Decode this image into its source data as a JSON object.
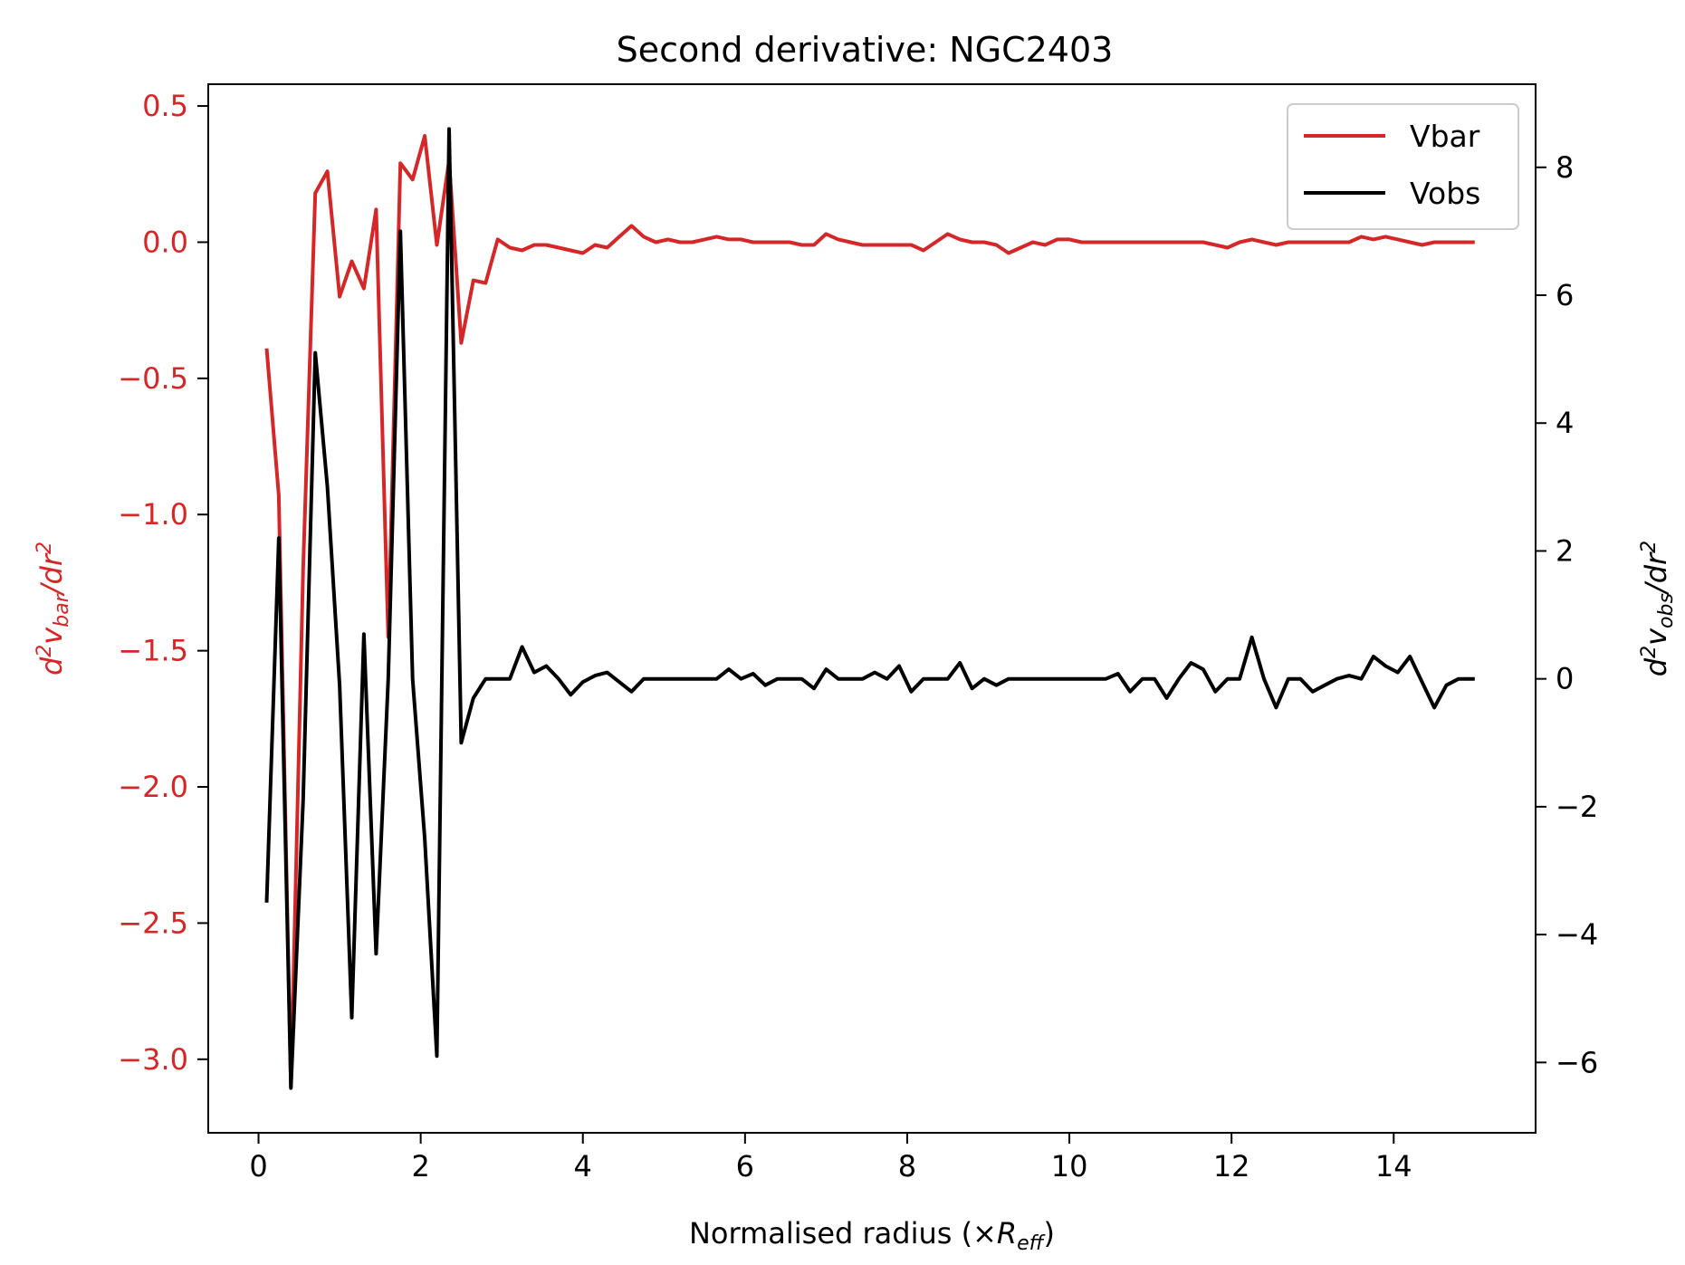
{
  "chart_data": {
    "type": "line",
    "title": "Second derivative: NGC2403",
    "xlabel": "Normalised radius (×R_eff)",
    "ylabel_left": "d²v_bar/dr²",
    "ylabel_right": "d²v_obs/dr²",
    "xlim": [
      -0.62,
      15.75
    ],
    "ylim_left": [
      -3.27,
      0.58
    ],
    "ylim_right": [
      -7.1,
      9.3
    ],
    "x_ticks": [
      0,
      2,
      4,
      6,
      8,
      10,
      12,
      14
    ],
    "y_ticks_left": [
      0.5,
      0.0,
      -0.5,
      -1.0,
      -1.5,
      -2.0,
      -2.5,
      -3.0
    ],
    "y_ticks_right": [
      8,
      6,
      4,
      2,
      0,
      -2,
      -4,
      -6
    ],
    "x_tick_labels": [
      "0",
      "2",
      "4",
      "6",
      "8",
      "10",
      "12",
      "14"
    ],
    "y_tick_labels_left": [
      "0.5",
      "0.0",
      "−0.5",
      "−1.0",
      "−1.5",
      "−2.0",
      "−2.5",
      "−3.0"
    ],
    "y_tick_labels_right": [
      "8",
      "6",
      "4",
      "2",
      "0",
      "−2",
      "−4",
      "−6"
    ],
    "legend_position": "top-right",
    "colors": {
      "vbar": "#d62728",
      "vobs": "#000000",
      "left_axis": "#d62728",
      "right_axis": "#000000"
    },
    "series": [
      {
        "name": "Vbar",
        "axis": "left",
        "color": "#d62728",
        "x": [
          0.1,
          0.25,
          0.4,
          0.55,
          0.7,
          0.85,
          1.0,
          1.15,
          1.3,
          1.45,
          1.6,
          1.75,
          1.9,
          2.05,
          2.2,
          2.35,
          2.5,
          2.65,
          2.8,
          2.95,
          3.1,
          3.25,
          3.4,
          3.55,
          3.7,
          3.85,
          4.0,
          4.15,
          4.3,
          4.45,
          4.6,
          4.75,
          4.9,
          5.05,
          5.2,
          5.35,
          5.5,
          5.65,
          5.8,
          5.95,
          6.1,
          6.25,
          6.4,
          6.55,
          6.7,
          6.85,
          7.0,
          7.15,
          7.3,
          7.45,
          7.6,
          7.75,
          7.9,
          8.05,
          8.2,
          8.35,
          8.5,
          8.65,
          8.8,
          8.95,
          9.1,
          9.25,
          9.4,
          9.55,
          9.7,
          9.85,
          10.0,
          10.15,
          10.3,
          10.45,
          10.6,
          10.75,
          10.9,
          11.05,
          11.2,
          11.35,
          11.5,
          11.65,
          11.8,
          11.95,
          12.1,
          12.25,
          12.4,
          12.55,
          12.7,
          12.85,
          13.0,
          13.15,
          13.3,
          13.45,
          13.6,
          13.75,
          13.9,
          14.05,
          14.2,
          14.35,
          14.5,
          14.65,
          14.8,
          14.95,
          15.0
        ],
        "values": [
          -0.39,
          -0.93,
          -3.1,
          -1.2,
          0.18,
          0.26,
          -0.2,
          -0.07,
          -0.17,
          0.12,
          -1.45,
          0.29,
          0.23,
          0.39,
          -0.01,
          0.3,
          -0.37,
          -0.14,
          -0.15,
          0.01,
          -0.02,
          -0.03,
          -0.01,
          -0.01,
          -0.02,
          -0.03,
          -0.04,
          -0.01,
          -0.02,
          0.02,
          0.06,
          0.02,
          0.0,
          0.01,
          0.0,
          0.0,
          0.01,
          0.02,
          0.01,
          0.01,
          0.0,
          0.0,
          0.0,
          0.0,
          -0.01,
          -0.01,
          0.03,
          0.01,
          0.0,
          -0.01,
          -0.01,
          -0.01,
          -0.01,
          -0.01,
          -0.03,
          0.0,
          0.03,
          0.01,
          0.0,
          0.0,
          -0.01,
          -0.04,
          -0.02,
          0.0,
          -0.01,
          0.01,
          0.01,
          0.0,
          0.0,
          0.0,
          0.0,
          0.0,
          0.0,
          0.0,
          0.0,
          0.0,
          0.0,
          0.0,
          -0.01,
          -0.02,
          0.0,
          0.01,
          0.0,
          -0.01,
          0.0,
          0.0,
          0.0,
          0.0,
          0.0,
          0.0,
          0.02,
          0.01,
          0.02,
          0.01,
          0.0,
          -0.01,
          0.0,
          0.0,
          0.0,
          0.0,
          0.0
        ]
      },
      {
        "name": "Vobs",
        "axis": "right",
        "color": "#000000",
        "x": [
          0.1,
          0.25,
          0.4,
          0.55,
          0.7,
          0.85,
          1.0,
          1.15,
          1.3,
          1.45,
          1.6,
          1.75,
          1.9,
          2.05,
          2.2,
          2.35,
          2.5,
          2.65,
          2.8,
          2.95,
          3.1,
          3.25,
          3.4,
          3.55,
          3.7,
          3.85,
          4.0,
          4.15,
          4.3,
          4.45,
          4.6,
          4.75,
          4.9,
          5.05,
          5.2,
          5.35,
          5.5,
          5.65,
          5.8,
          5.95,
          6.1,
          6.25,
          6.4,
          6.55,
          6.7,
          6.85,
          7.0,
          7.15,
          7.3,
          7.45,
          7.6,
          7.75,
          7.9,
          8.05,
          8.2,
          8.35,
          8.5,
          8.65,
          8.8,
          8.95,
          9.1,
          9.25,
          9.4,
          9.55,
          9.7,
          9.85,
          10.0,
          10.15,
          10.3,
          10.45,
          10.6,
          10.75,
          10.9,
          11.05,
          11.2,
          11.35,
          11.5,
          11.65,
          11.8,
          11.95,
          12.1,
          12.25,
          12.4,
          12.55,
          12.7,
          12.85,
          13.0,
          13.15,
          13.3,
          13.45,
          13.6,
          13.75,
          13.9,
          14.05,
          14.2,
          14.35,
          14.5,
          14.65,
          14.8,
          14.95,
          15.0
        ],
        "values": [
          -3.5,
          2.2,
          -6.4,
          -1.9,
          5.1,
          3.0,
          -0.1,
          -5.3,
          0.7,
          -4.3,
          0.0,
          7.0,
          0.0,
          -2.5,
          -5.9,
          8.6,
          -1.0,
          -0.3,
          0.0,
          0.0,
          0.0,
          0.5,
          0.1,
          0.2,
          0.0,
          -0.25,
          -0.05,
          0.05,
          0.1,
          -0.05,
          -0.2,
          0.0,
          0.0,
          0.0,
          0.0,
          0.0,
          0.0,
          0.0,
          0.15,
          0.0,
          0.08,
          -0.1,
          0.0,
          0.0,
          0.0,
          -0.15,
          0.15,
          0.0,
          0.0,
          0.0,
          0.1,
          0.0,
          0.2,
          -0.2,
          0.0,
          0.0,
          0.0,
          0.25,
          -0.15,
          0.0,
          -0.1,
          0.0,
          0.0,
          0.0,
          0.0,
          0.0,
          0.0,
          0.0,
          0.0,
          0.0,
          0.08,
          -0.2,
          0.0,
          0.0,
          -0.3,
          0.0,
          0.25,
          0.15,
          -0.2,
          0.0,
          0.0,
          0.65,
          0.0,
          -0.45,
          0.0,
          0.0,
          -0.2,
          -0.1,
          0.0,
          0.05,
          0.0,
          0.35,
          0.2,
          0.1,
          0.35,
          -0.05,
          -0.45,
          -0.1,
          0.0,
          0.0,
          0.0
        ]
      }
    ]
  }
}
